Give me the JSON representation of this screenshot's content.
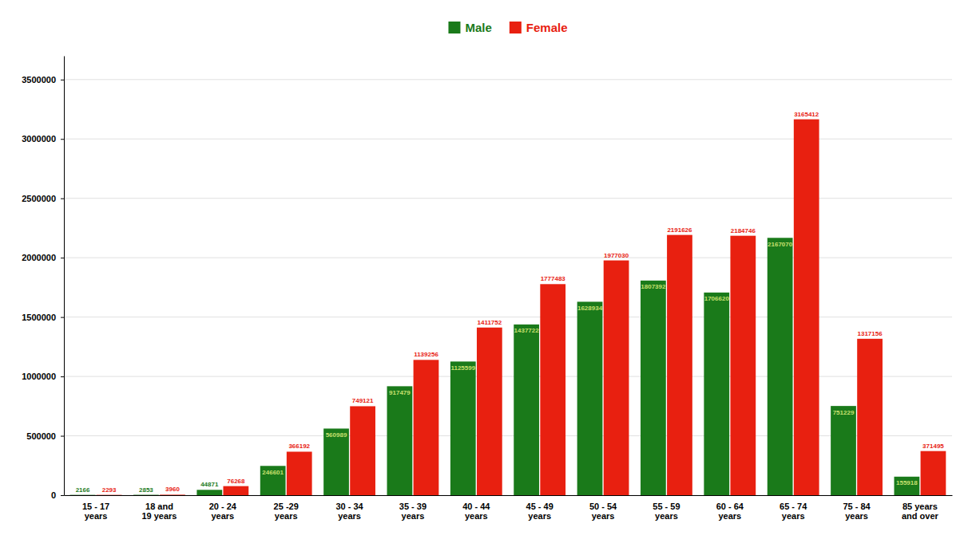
{
  "chart_data": {
    "type": "bar",
    "categories": [
      "15 - 17\nyears",
      "18 and\n19 years",
      "20 - 24\nyears",
      "25 -29\nyears",
      "30 - 34\nyears",
      "35 - 39\nyears",
      "40 - 44\nyears",
      "45 - 49\nyears",
      "50 - 54\nyears",
      "55 - 59\nyears",
      "60 - 64\nyears",
      "65 - 74\nyears",
      "75 - 84\nyears",
      "85 years\nand over"
    ],
    "series": [
      {
        "name": "Male",
        "color": "#1a7a1a",
        "values": [
          2166,
          2853,
          44871,
          246601,
          560989,
          917479,
          1125599,
          1437722,
          1628934,
          1807392,
          1706620,
          2167070,
          751229,
          155918
        ]
      },
      {
        "name": "Female",
        "color": "#e82010",
        "values": [
          2293,
          3960,
          76268,
          366192,
          749121,
          1139256,
          1411752,
          1777483,
          1977030,
          2191626,
          2184746,
          3165412,
          1317156,
          371495
        ]
      }
    ],
    "ylim": [
      0,
      3700000
    ],
    "yticks": [
      0,
      500000,
      1000000,
      1500000,
      2000000,
      2500000,
      3000000,
      3500000
    ],
    "grid": true,
    "legend": "top",
    "data_labels": true
  }
}
